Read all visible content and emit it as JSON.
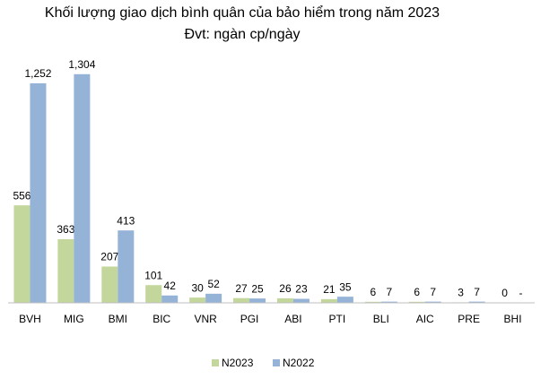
{
  "chart_data": {
    "type": "bar",
    "title": "Khối lượng giao dịch bình quân của bảo hiểm trong năm 2023",
    "subtitle": "Đvt: ngàn cp/ngày",
    "categories": [
      "BVH",
      "MIG",
      "BMI",
      "BIC",
      "VNR",
      "PGI",
      "ABI",
      "PTI",
      "BLI",
      "AIC",
      "PRE",
      "BHI"
    ],
    "series": [
      {
        "name": "N2023",
        "color": "#c3d69b",
        "values": [
          556,
          363,
          207,
          101,
          30,
          27,
          26,
          21,
          6,
          6,
          3,
          0
        ],
        "value_labels": [
          "556",
          "363",
          "207",
          "101",
          "30",
          "27",
          "26",
          "21",
          "6",
          "6",
          "3",
          "0"
        ]
      },
      {
        "name": "N2022",
        "color": "#95b3d7",
        "values": [
          1252,
          1304,
          413,
          42,
          52,
          25,
          23,
          35,
          7,
          7,
          7,
          0
        ],
        "value_labels": [
          "1,252",
          "1,304",
          "413",
          "42",
          "52",
          "25",
          "23",
          "35",
          "7",
          "7",
          "7",
          "-"
        ]
      }
    ],
    "ylim": [
      0,
      1400
    ],
    "legend": "bottom"
  }
}
